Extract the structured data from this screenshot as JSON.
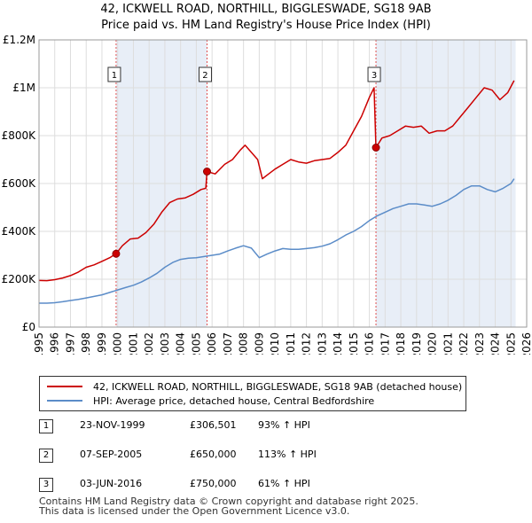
{
  "title_line1": "42, ICKWELL ROAD, NORTHILL, BIGGLESWADE, SG18 9AB",
  "title_line2": "Price paid vs. HM Land Registry's House Price Index (HPI)",
  "colors": {
    "property": "#cc0000",
    "hpi": "#5b8cc8",
    "shade": "#e8eef7",
    "grid": "#dddddd",
    "marker_line": "#e05050"
  },
  "legend": {
    "property_label": "42, ICKWELL ROAD, NORTHILL, BIGGLESWADE, SG18 9AB (detached house)",
    "hpi_label": "HPI: Average price, detached house, Central Bedfordshire"
  },
  "sales": [
    {
      "num": "1",
      "date": "23-NOV-1999",
      "price": "£306,501",
      "hpi": "93% ↑ HPI"
    },
    {
      "num": "2",
      "date": "07-SEP-2005",
      "price": "£650,000",
      "hpi": "113% ↑ HPI"
    },
    {
      "num": "3",
      "date": "03-JUN-2016",
      "price": "£750,000",
      "hpi": "61% ↑ HPI"
    }
  ],
  "footer_line1": "Contains HM Land Registry data © Crown copyright and database right 2025.",
  "footer_line2": "This data is licensed under the Open Government Licence v3.0.",
  "chart_data": {
    "type": "line",
    "title": "42, ICKWELL ROAD, NORTHILL, BIGGLESWADE, SG18 9AB",
    "subtitle": "Price paid vs. HM Land Registry's House Price Index (HPI)",
    "xlim": [
      1995,
      2026
    ],
    "ylim": [
      0,
      1200000
    ],
    "y_ticks": [
      0,
      200000,
      400000,
      600000,
      800000,
      1000000,
      1200000
    ],
    "y_tick_labels": [
      "£0",
      "£200K",
      "£400K",
      "£600K",
      "£800K",
      "£1M",
      "£1.2M"
    ],
    "x_ticks": [
      1995,
      1996,
      1997,
      1998,
      1999,
      2000,
      2001,
      2002,
      2003,
      2004,
      2005,
      2006,
      2007,
      2008,
      2009,
      2010,
      2011,
      2012,
      2013,
      2014,
      2015,
      2016,
      2017,
      2018,
      2019,
      2020,
      2021,
      2022,
      2023,
      2024,
      2025,
      2026
    ],
    "shaded_ranges": [
      [
        1999.9,
        2005.68
      ],
      [
        2016.42,
        2025.3
      ]
    ],
    "sale_markers": [
      {
        "label": "1",
        "x": 1999.9,
        "y": 306501
      },
      {
        "label": "2",
        "x": 2005.68,
        "y": 650000
      },
      {
        "label": "3",
        "x": 2016.42,
        "y": 750000
      }
    ],
    "series": [
      {
        "name": "42, ICKWELL ROAD, NORTHILL, BIGGLESWADE, SG18 9AB (detached house)",
        "x": [
          1995,
          1995.5,
          1996,
          1996.5,
          1997,
          1997.5,
          1998,
          1998.5,
          1999,
          1999.5,
          1999.9,
          2000.3,
          2000.8,
          2001.3,
          2001.8,
          2002.3,
          2002.8,
          2003.3,
          2003.8,
          2004.3,
          2004.8,
          2005.3,
          2005.6,
          2005.68,
          2006.2,
          2006.8,
          2007.3,
          2007.8,
          2008.1,
          2008.5,
          2008.9,
          2009.2,
          2009.6,
          2010.0,
          2010.5,
          2011.0,
          2011.5,
          2012.0,
          2012.5,
          2013.0,
          2013.5,
          2014.0,
          2014.5,
          2015.0,
          2015.5,
          2016.0,
          2016.3,
          2016.42,
          2016.8,
          2017.3,
          2017.8,
          2018.3,
          2018.8,
          2019.3,
          2019.8,
          2020.3,
          2020.8,
          2021.3,
          2021.8,
          2022.3,
          2022.8,
          2023.3,
          2023.8,
          2024.3,
          2024.8,
          2025.2
        ],
        "values": [
          195000,
          194000,
          198000,
          205000,
          215000,
          230000,
          250000,
          260000,
          275000,
          290000,
          306501,
          340000,
          368000,
          372000,
          395000,
          430000,
          480000,
          520000,
          535000,
          540000,
          555000,
          575000,
          580000,
          650000,
          640000,
          680000,
          700000,
          740000,
          760000,
          730000,
          700000,
          620000,
          640000,
          660000,
          680000,
          700000,
          690000,
          685000,
          695000,
          700000,
          705000,
          730000,
          760000,
          820000,
          880000,
          960000,
          1000000,
          750000,
          790000,
          800000,
          820000,
          840000,
          835000,
          840000,
          810000,
          820000,
          820000,
          840000,
          880000,
          920000,
          960000,
          1000000,
          990000,
          950000,
          980000,
          1030000
        ]
      },
      {
        "name": "HPI: Average price, detached house, Central Bedfordshire",
        "x": [
          1995,
          1995.5,
          1996,
          1996.5,
          1997,
          1997.5,
          1998,
          1998.5,
          1999,
          1999.5,
          2000,
          2000.5,
          2001,
          2001.5,
          2002,
          2002.5,
          2003,
          2003.5,
          2004,
          2004.5,
          2005,
          2005.5,
          2006,
          2006.5,
          2007,
          2007.5,
          2008,
          2008.5,
          2009,
          2009.5,
          2010,
          2010.5,
          2011,
          2011.5,
          2012,
          2012.5,
          2013,
          2013.5,
          2014,
          2014.5,
          2015,
          2015.5,
          2016,
          2016.5,
          2017,
          2017.5,
          2018,
          2018.5,
          2019,
          2019.5,
          2020,
          2020.5,
          2021,
          2021.5,
          2022,
          2022.5,
          2023,
          2023.5,
          2024,
          2024.5,
          2025,
          2025.2
        ],
        "values": [
          100000,
          100000,
          102000,
          106000,
          111000,
          116000,
          122000,
          128000,
          135000,
          145000,
          155000,
          165000,
          175000,
          188000,
          205000,
          225000,
          250000,
          270000,
          283000,
          288000,
          290000,
          295000,
          300000,
          305000,
          318000,
          330000,
          340000,
          330000,
          290000,
          305000,
          318000,
          328000,
          325000,
          325000,
          328000,
          332000,
          338000,
          348000,
          365000,
          385000,
          400000,
          420000,
          445000,
          465000,
          480000,
          495000,
          505000,
          515000,
          515000,
          510000,
          505000,
          515000,
          530000,
          550000,
          575000,
          590000,
          590000,
          575000,
          565000,
          580000,
          600000,
          620000
        ]
      }
    ]
  }
}
